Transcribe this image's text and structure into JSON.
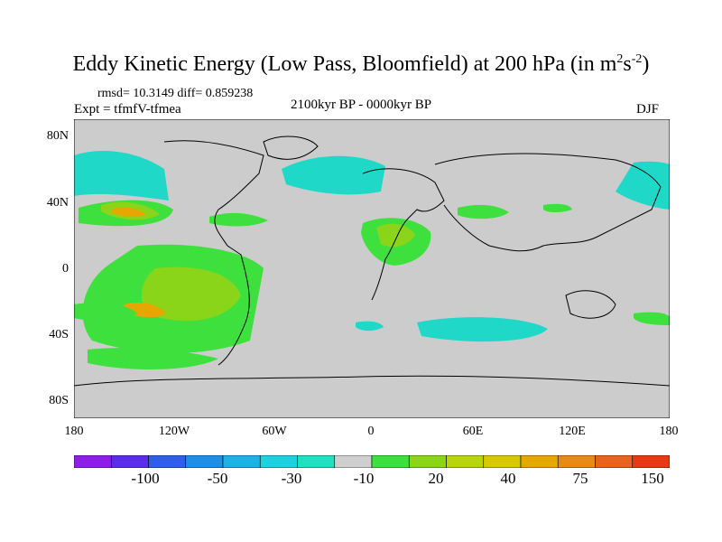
{
  "title": {
    "main": "Eddy Kinetic Energy (Low Pass, Bloomfield) at 200 hPa (in m",
    "sup1": "2",
    "mid": "s",
    "sup2": "-2",
    "end": ")"
  },
  "stats": "rmsd= 10.3149  diff= 0.859238",
  "expt": "Expt = tfmfV-tfmea",
  "period": "2100kyr BP - 0000kyr BP",
  "season": "DJF",
  "lat_labels": [
    "80N",
    "40N",
    "0",
    "40S",
    "80S"
  ],
  "lon_labels": [
    "180",
    "120W",
    "60W",
    "0",
    "60E",
    "120E",
    "180"
  ],
  "colorbar": {
    "colors": [
      "#8f1ee6",
      "#5a2ee8",
      "#2f5fe6",
      "#1e8fe6",
      "#1eb0e6",
      "#1ed0e0",
      "#20e0c0",
      "#cfcfcf",
      "#3ee03e",
      "#8ad41a",
      "#b8d40e",
      "#d8c800",
      "#e6a800",
      "#e68a1a",
      "#e6641e",
      "#e63a14"
    ],
    "labels": [
      "-100",
      "-50",
      "-30",
      "-10",
      "20",
      "40",
      "75",
      "150"
    ]
  },
  "colors": {
    "land_bg": "#cccccc",
    "coast": "#000000"
  }
}
